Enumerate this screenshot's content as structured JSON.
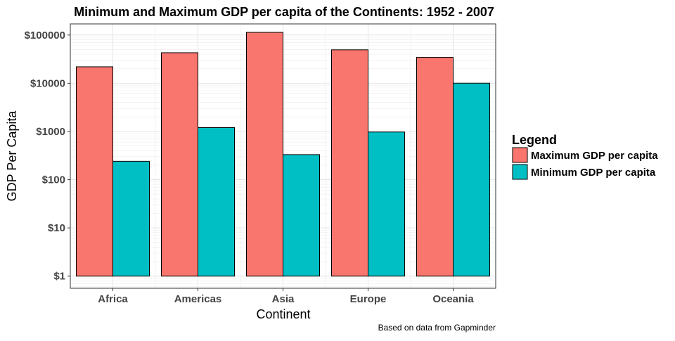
{
  "chart_data": {
    "type": "bar",
    "title": "Minimum and Maximum GDP per capita of the Continents: 1952 - 2007",
    "xlabel": "Continent",
    "ylabel": "GDP Per Capita",
    "caption": "Based on data from Gapminder",
    "y_scale": "log10",
    "ylim": [
      0.56,
      170000
    ],
    "y_ticks": [
      1,
      10,
      100,
      1000,
      10000,
      100000
    ],
    "y_tick_labels": [
      "$1",
      "$10",
      "$100",
      "$1000",
      "$10000",
      "$100000"
    ],
    "categories": [
      "Africa",
      "Americas",
      "Asia",
      "Europe",
      "Oceania"
    ],
    "series": [
      {
        "name": "Maximum GDP per capita",
        "color": "#F8766D",
        "values": [
          21951,
          42952,
          113523,
          49357,
          34435
        ]
      },
      {
        "name": "Minimum GDP per capita",
        "color": "#00BFC4",
        "values": [
          241,
          1202,
          331,
          974,
          10040
        ]
      }
    ],
    "grid": true,
    "legend": {
      "title": "Legend",
      "position": "right"
    }
  }
}
